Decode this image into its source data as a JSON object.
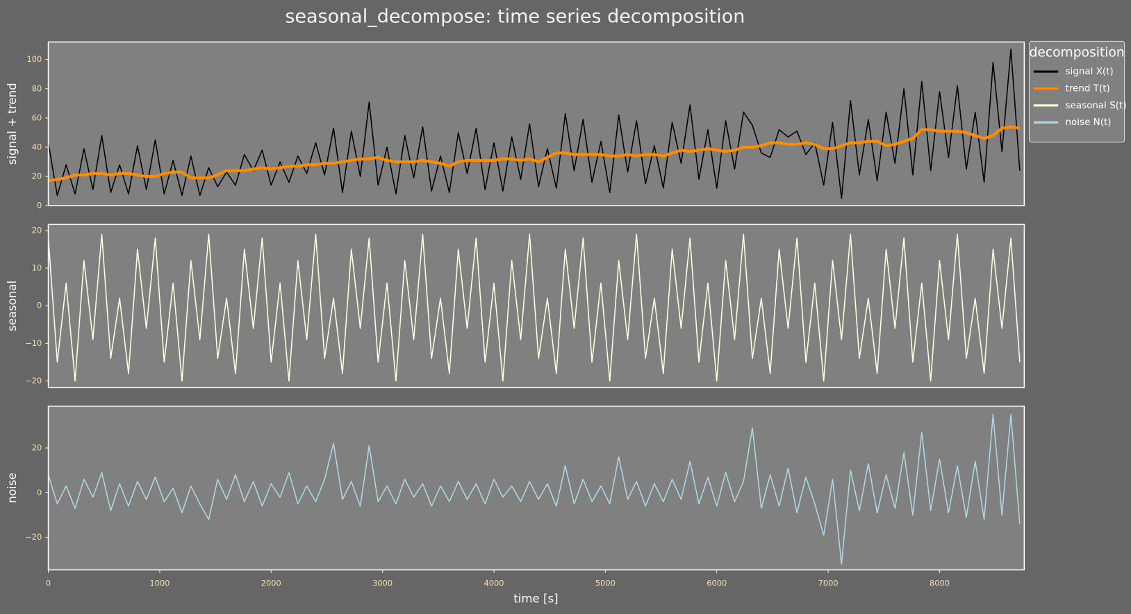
{
  "chart_data": {
    "type": "line",
    "title": "seasonal_decompose: time series decomposition",
    "xlabel": "time [s]",
    "xlim": [
      0,
      8760
    ],
    "xticks": [
      0,
      1000,
      2000,
      3000,
      4000,
      5000,
      6000,
      7000,
      8000
    ],
    "legend_title": "decomposition",
    "legend": "upper right outside",
    "x": [
      0,
      80,
      160,
      240,
      320,
      400,
      480,
      560,
      640,
      720,
      800,
      880,
      960,
      1040,
      1120,
      1200,
      1280,
      1360,
      1440,
      1520,
      1600,
      1680,
      1760,
      1840,
      1920,
      2000,
      2080,
      2160,
      2240,
      2320,
      2400,
      2480,
      2560,
      2640,
      2720,
      2800,
      2880,
      2960,
      3040,
      3120,
      3200,
      3280,
      3360,
      3440,
      3520,
      3600,
      3680,
      3760,
      3840,
      3920,
      4000,
      4080,
      4160,
      4240,
      4320,
      4400,
      4480,
      4560,
      4640,
      4720,
      4800,
      4880,
      4960,
      5040,
      5120,
      5200,
      5280,
      5360,
      5440,
      5520,
      5600,
      5680,
      5760,
      5840,
      5920,
      6000,
      6080,
      6160,
      6240,
      6320,
      6400,
      6480,
      6560,
      6640,
      6720,
      6800,
      6880,
      6960,
      7040,
      7120,
      7200,
      7280,
      7360,
      7440,
      7520,
      7600,
      7680,
      7760,
      7840,
      7920,
      8000,
      8080,
      8160,
      8240,
      8320,
      8400,
      8480,
      8560,
      8640,
      8720
    ],
    "panels": [
      {
        "ylabel": "signal + trend",
        "ylim": [
          0,
          112
        ],
        "yticks": [
          0,
          20,
          40,
          60,
          80,
          100
        ],
        "series": [
          {
            "name": "signal X(t)",
            "color": "#000000",
            "width": 1.5,
            "values": [
              43,
              7,
              28,
              8,
              39,
              11,
              48,
              9,
              28,
              8,
              41,
              11,
              45,
              8,
              31,
              7,
              34,
              7,
              26,
              13,
              23,
              14,
              35,
              24,
              38,
              14,
              30,
              16,
              34,
              22,
              43,
              21,
              53,
              9,
              51,
              20,
              71,
              14,
              40,
              8,
              48,
              19,
              54,
              10,
              34,
              9,
              50,
              22,
              53,
              11,
              43,
              10,
              47,
              18,
              56,
              13,
              39,
              12,
              63,
              24,
              59,
              16,
              44,
              9,
              62,
              23,
              58,
              15,
              41,
              12,
              57,
              29,
              69,
              18,
              52,
              12,
              58,
              25,
              64,
              55,
              36,
              33,
              52,
              47,
              51,
              35,
              43,
              14,
              57,
              5,
              72,
              21,
              59,
              17,
              64,
              29,
              80,
              21,
              85,
              24,
              78,
              33,
              82,
              25,
              64,
              16,
              98,
              37,
              107,
              24
            ]
          },
          {
            "name": "trend T(t)",
            "color": "#ff8c00",
            "width": 4,
            "values": [
              17,
              18,
              19,
              21,
              21,
              22,
              22,
              21,
              22,
              22,
              21,
              20,
              20,
              22,
              23,
              23,
              19,
              19,
              19,
              21,
              24,
              24,
              24,
              25,
              26,
              25,
              26,
              27,
              27,
              28,
              28,
              29,
              29,
              30,
              31,
              32,
              32,
              33,
              31,
              30,
              30,
              30,
              31,
              30,
              29,
              27,
              30,
              31,
              31,
              31,
              31,
              32,
              32,
              31,
              32,
              30,
              33,
              36,
              36,
              35,
              35,
              35,
              35,
              34,
              34,
              35,
              34,
              35,
              35,
              34,
              36,
              38,
              37,
              38,
              39,
              38,
              37,
              38,
              40,
              40,
              41,
              43,
              43,
              42,
              42,
              43,
              42,
              39,
              39,
              41,
              43,
              43,
              44,
              44,
              41,
              42,
              44,
              46,
              52,
              52,
              51,
              51,
              51,
              50,
              48,
              46,
              48,
              53,
              54,
              53
            ]
          }
        ]
      },
      {
        "ylabel": "seasonal",
        "ylim": [
          -21.7,
          21.6
        ],
        "yticks": [
          {
            "value": -20,
            "label": "−20"
          },
          {
            "value": -10,
            "label": "−10"
          },
          0,
          10,
          20
        ],
        "series": [
          {
            "name": "seasonal S(t)",
            "color": "#ffffe0",
            "width": 1.5,
            "values": [
              18,
              -15,
              6,
              -20,
              12,
              -9,
              19,
              -14,
              2,
              -18,
              15,
              -6,
              18,
              -15,
              6,
              -20,
              12,
              -9,
              19,
              -14,
              2,
              -18,
              15,
              -6,
              18,
              -15,
              6,
              -20,
              12,
              -9,
              19,
              -14,
              2,
              -18,
              15,
              -6,
              18,
              -15,
              6,
              -20,
              12,
              -9,
              19,
              -14,
              2,
              -18,
              15,
              -6,
              18,
              -15,
              6,
              -20,
              12,
              -9,
              19,
              -14,
              2,
              -18,
              15,
              -6,
              18,
              -15,
              6,
              -20,
              12,
              -9,
              19,
              -14,
              2,
              -18,
              15,
              -6,
              18,
              -15,
              6,
              -20,
              12,
              -9,
              19,
              -14,
              2,
              -18,
              15,
              -6,
              18,
              -15,
              6,
              -20,
              12,
              -9,
              19,
              -14,
              2,
              -18,
              15,
              -6,
              18,
              -15,
              6,
              -20,
              12,
              -9,
              19,
              -14,
              2,
              -18,
              15,
              -6,
              18,
              -15
            ]
          }
        ]
      },
      {
        "ylabel": "noise",
        "ylim": [
          -34.5,
          38.7
        ],
        "yticks": [
          {
            "value": -20,
            "label": "−20"
          },
          0,
          20
        ],
        "series": [
          {
            "name": "noise N(t)",
            "color": "#add8e6",
            "width": 1.5,
            "values": [
              8,
              -5,
              3,
              -7,
              6,
              -2,
              9,
              -8,
              4,
              -6,
              5,
              -3,
              7,
              -4,
              2,
              -9,
              3,
              -5,
              -12,
              6,
              -3,
              8,
              -4,
              5,
              -6,
              4,
              -2,
              9,
              -5,
              3,
              -4,
              6,
              22,
              -3,
              5,
              -6,
              21,
              -4,
              3,
              -5,
              6,
              -2,
              4,
              -6,
              3,
              -4,
              5,
              -3,
              4,
              -5,
              6,
              -2,
              3,
              -4,
              5,
              -3,
              4,
              -6,
              12,
              -5,
              6,
              -4,
              3,
              -5,
              16,
              -3,
              5,
              -6,
              4,
              -4,
              6,
              -3,
              14,
              -5,
              7,
              -6,
              9,
              -4,
              5,
              29,
              -7,
              8,
              -6,
              11,
              -9,
              7,
              -5,
              -19,
              6,
              -32,
              10,
              -8,
              13,
              -9,
              8,
              -7,
              18,
              -10,
              27,
              -8,
              15,
              -9,
              12,
              -11,
              14,
              -12,
              35,
              -10,
              35,
              -14
            ]
          }
        ]
      }
    ]
  }
}
